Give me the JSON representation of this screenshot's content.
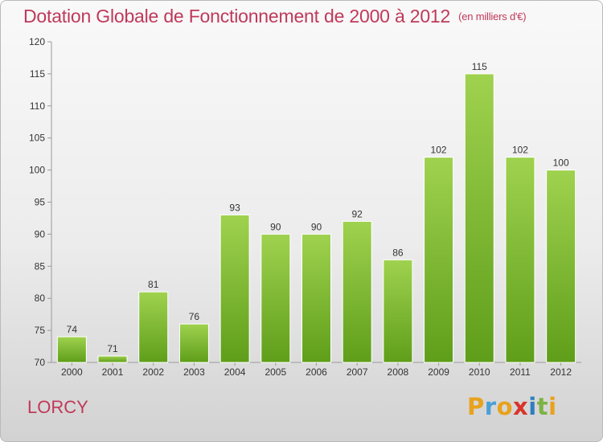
{
  "header": {
    "title": "Dotation Globale de Fonctionnement de 2000 à 2012",
    "unit": "(en milliers d'€)"
  },
  "footer": {
    "commune": "LORCY",
    "brand_letters": [
      "P",
      "r",
      "o",
      "x",
      "i",
      "t",
      "i"
    ],
    "brand_colors": [
      "#e8a21c",
      "#4a9fd8",
      "#e8a21c",
      "#d9342b",
      "#2e7fbf",
      "#7cb342",
      "#e8a21c"
    ]
  },
  "chart_data": {
    "type": "bar",
    "categories": [
      "2000",
      "2001",
      "2002",
      "2003",
      "2004",
      "2005",
      "2006",
      "2007",
      "2008",
      "2009",
      "2010",
      "2011",
      "2012"
    ],
    "values": [
      74,
      71,
      81,
      76,
      93,
      90,
      90,
      92,
      86,
      102,
      115,
      102,
      100
    ],
    "ylim": [
      70,
      120
    ],
    "yticks": [
      70,
      75,
      80,
      85,
      90,
      95,
      100,
      105,
      110,
      115,
      120
    ],
    "grid": false,
    "data_labels": true,
    "bar_color": "#7cb733",
    "title_color": "#c0395a",
    "xlabel": "",
    "ylabel": ""
  }
}
